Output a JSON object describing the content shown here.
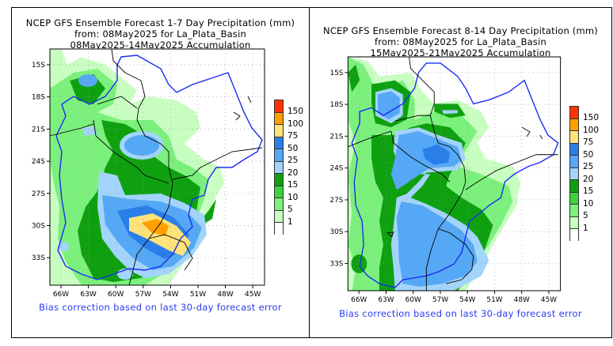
{
  "panels": [
    {
      "title": "NCEP GFS Ensemble Forecast 1-7 Day Precipitation (mm)",
      "subtitle": "from: 08May2025   for La_Plata_Basin",
      "period": "08May2025-14May2025 Accumulation",
      "footer": "Bias correction based on last 30-day forecast error"
    },
    {
      "title": "NCEP GFS Ensemble Forecast 8-14 Day Precipitation (mm)",
      "subtitle": "from: 08May2025   for La_Plata_Basin",
      "period": "15May2025-21May2025 Accumulation",
      "footer": "Bias correction based on last 30-day forecast error"
    }
  ],
  "lat_ticks": [
    "15S",
    "18S",
    "21S",
    "24S",
    "27S",
    "30S",
    "33S"
  ],
  "lon_ticks": [
    "66W",
    "63W",
    "60W",
    "57W",
    "54W",
    "51W",
    "48W",
    "45W"
  ],
  "legend": {
    "labels": [
      "150",
      "100",
      "75",
      "50",
      "25",
      "20",
      "15",
      "10",
      "5",
      "1"
    ],
    "colors": [
      "#ff3300",
      "#ffa000",
      "#ffe27a",
      "#2a7ee8",
      "#55a8f5",
      "#a3d4fb",
      "#0fa010",
      "#3cd23c",
      "#7cf07c",
      "#c8ffc0",
      "#ffffff"
    ]
  },
  "colors": {
    "basin_outline": "#1a2df0",
    "borders": "#000000",
    "bias_text": "#2a3cf0"
  }
}
